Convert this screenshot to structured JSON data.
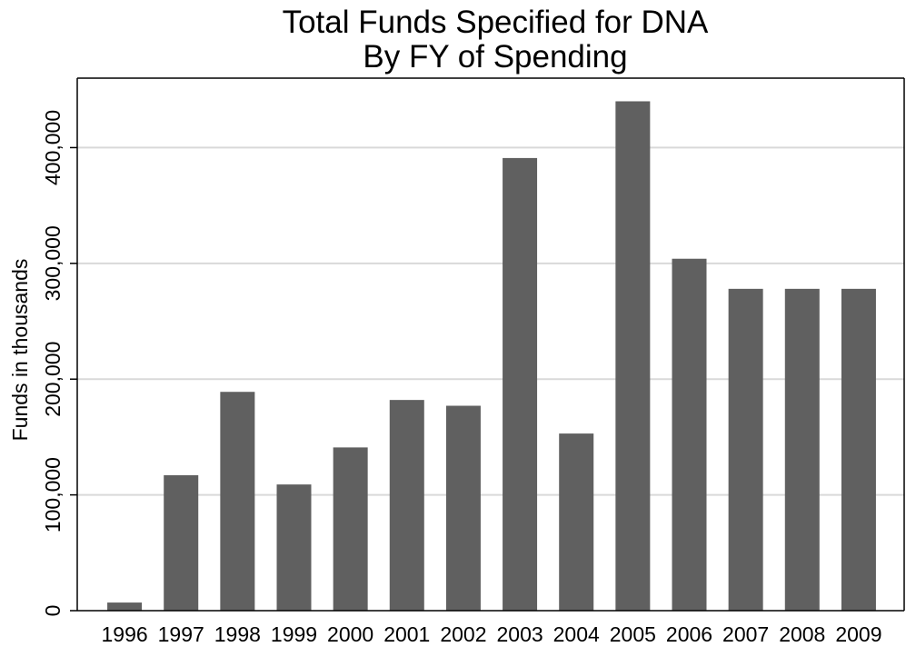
{
  "chart_data": {
    "type": "bar",
    "title": [
      "Total Funds Specified for DNA",
      "By FY of Spending"
    ],
    "xlabel": "",
    "ylabel": "Funds in thousands",
    "categories": [
      "1996",
      "1997",
      "1998",
      "1999",
      "2000",
      "2001",
      "2002",
      "2003",
      "2004",
      "2005",
      "2006",
      "2007",
      "2008",
      "2009"
    ],
    "values": [
      7000,
      117000,
      189000,
      109000,
      141000,
      182000,
      177000,
      391000,
      153000,
      440000,
      304000,
      278000,
      278000,
      278000
    ],
    "yticks": [
      0,
      100000,
      200000,
      300000,
      400000
    ],
    "ytick_labels": [
      "0",
      "100,000",
      "200,000",
      "300,000",
      "400,000"
    ],
    "ylim": [
      0,
      460000
    ],
    "grid": "horizontal",
    "legend": "none",
    "colors": {
      "bar": "#606060",
      "grid": "#d9d9d9",
      "axis": "#000000"
    }
  }
}
